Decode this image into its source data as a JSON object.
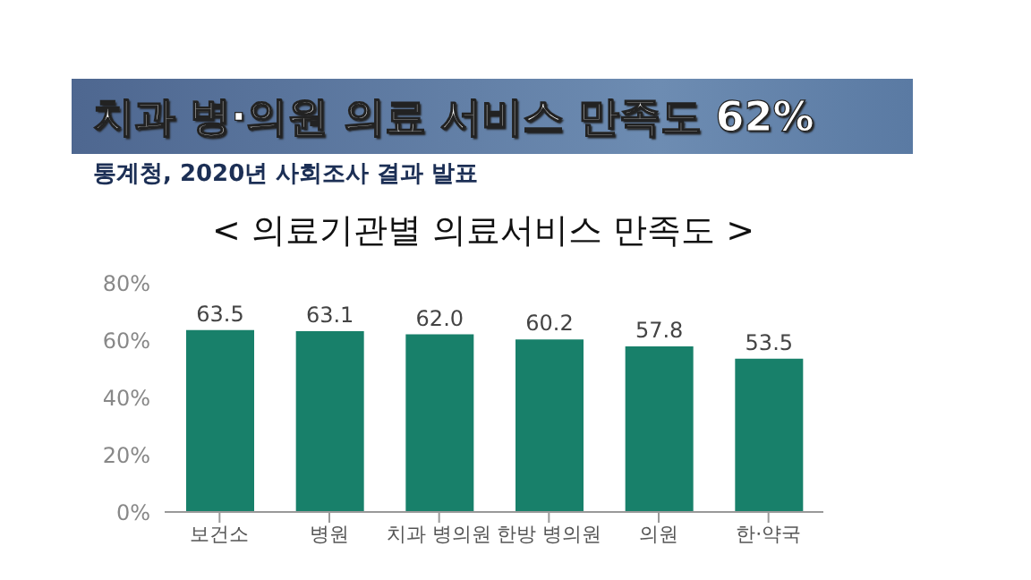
{
  "chart_data": {
    "type": "bar",
    "title": "치과 병·의원 의료 서비스 만족도 62%",
    "subtitle": "통계청, 2020년 사회조사 결과 발표",
    "annotations": [
      "< 의료기관별 의료서비스 만족도 >"
    ],
    "categories": [
      "보건소",
      "병원",
      "치과 병의원",
      "한방 병의원",
      "의원",
      "한·약국"
    ],
    "values": [
      63.5,
      63.1,
      62.0,
      60.2,
      57.8,
      53.5
    ],
    "value_labels": [
      "63.5",
      "63.1",
      "62.0",
      "60.2",
      "57.8",
      "53.5"
    ],
    "color": "#18806a",
    "ylim": [
      0,
      80
    ],
    "yticks": [
      {
        "value": 0,
        "label": "0%"
      },
      {
        "value": 20,
        "label": "20%"
      },
      {
        "value": 40,
        "label": "40%"
      },
      {
        "value": 60,
        "label": "60%"
      },
      {
        "value": 80,
        "label": "80%"
      }
    ],
    "grid": false,
    "legend": false
  }
}
